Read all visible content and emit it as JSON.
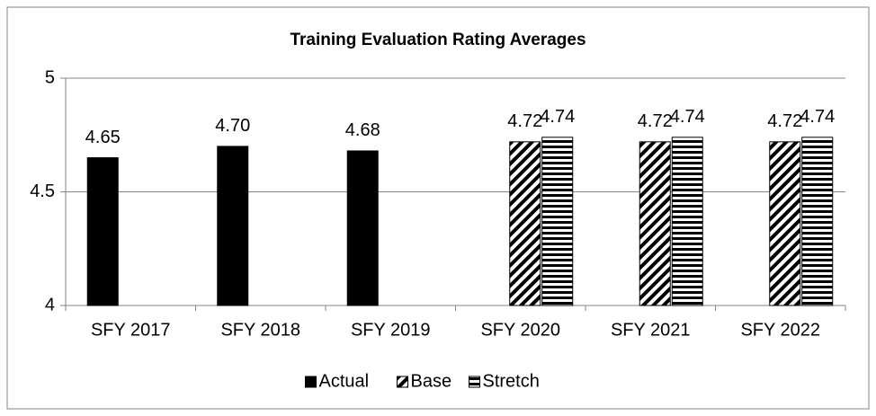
{
  "chart_data": {
    "type": "bar",
    "title": "Training Evaluation Rating Averages",
    "categories": [
      "SFY 2017",
      "SFY 2018",
      "SFY 2019",
      "SFY 2020",
      "SFY 2021",
      "SFY 2022"
    ],
    "series": [
      {
        "name": "Actual",
        "color": "#000000",
        "pattern": "solid",
        "values": [
          4.65,
          4.7,
          4.68,
          null,
          null,
          null
        ],
        "value_labels": [
          "4.65",
          "4.70",
          "4.68",
          null,
          null,
          null
        ]
      },
      {
        "name": "Base",
        "color": "#000000",
        "pattern": "diagonal",
        "values": [
          null,
          null,
          null,
          4.72,
          4.72,
          4.72
        ],
        "value_labels": [
          null,
          null,
          null,
          "4.72",
          "4.72",
          "4.72"
        ]
      },
      {
        "name": "Stretch",
        "color": "#000000",
        "pattern": "horizontal",
        "values": [
          null,
          null,
          null,
          4.74,
          4.74,
          4.74
        ],
        "value_labels": [
          null,
          null,
          null,
          "4.74",
          "4.74",
          "4.74"
        ]
      }
    ],
    "ylim": [
      4,
      5
    ],
    "yticks": [
      4,
      4.5,
      5
    ],
    "grid": true,
    "legend": "bottom"
  }
}
